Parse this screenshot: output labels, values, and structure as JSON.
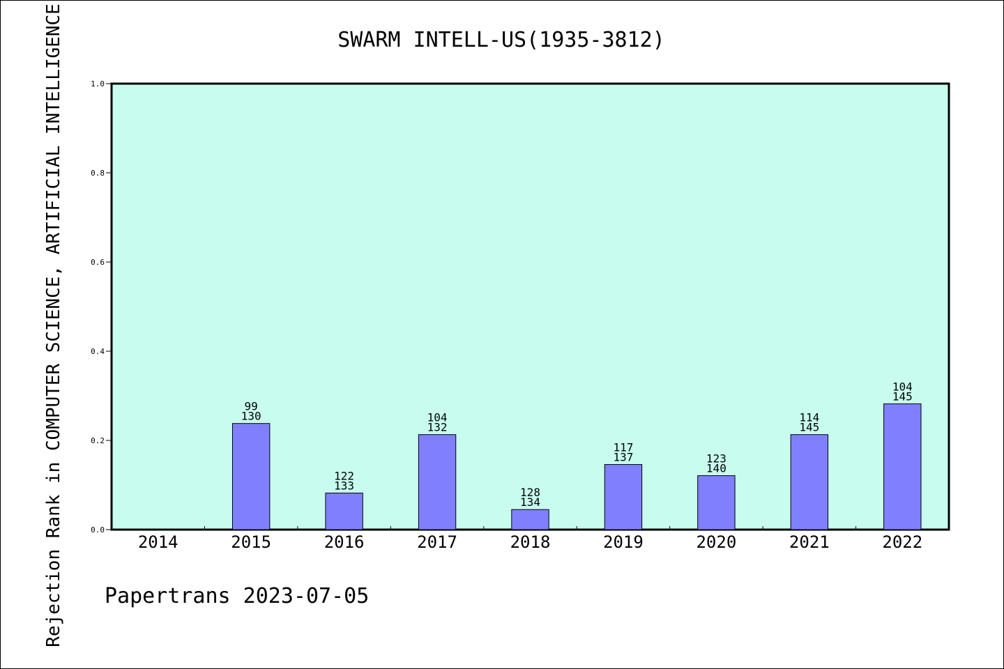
{
  "chart_data": {
    "type": "bar",
    "title": "SWARM INTELL-US(1935-3812)",
    "ylabel": "Rejection Rank in COMPUTER SCIENCE, ARTIFICIAL INTELLIGENCE",
    "xlabel": "",
    "categories": [
      "2014",
      "2015",
      "2016",
      "2017",
      "2018",
      "2019",
      "2020",
      "2021",
      "2022"
    ],
    "values": [
      0,
      0.238,
      0.082,
      0.213,
      0.045,
      0.146,
      0.121,
      0.213,
      0.282
    ],
    "labels_top": [
      "",
      "99",
      "122",
      "104",
      "128",
      "117",
      "123",
      "114",
      "104"
    ],
    "labels_bottom": [
      "",
      "130",
      "133",
      "132",
      "134",
      "137",
      "140",
      "145",
      "145"
    ],
    "ylim": [
      0,
      1.0
    ],
    "yticks": [
      "0.0",
      "0.2",
      "0.4",
      "0.6",
      "0.8",
      "1.0"
    ],
    "grid": false,
    "legend": "none",
    "colors": {
      "plot_bg": "#c8fcee",
      "bar": "#8080ff"
    }
  },
  "footer": {
    "text": "Papertrans 2023-07-05"
  }
}
